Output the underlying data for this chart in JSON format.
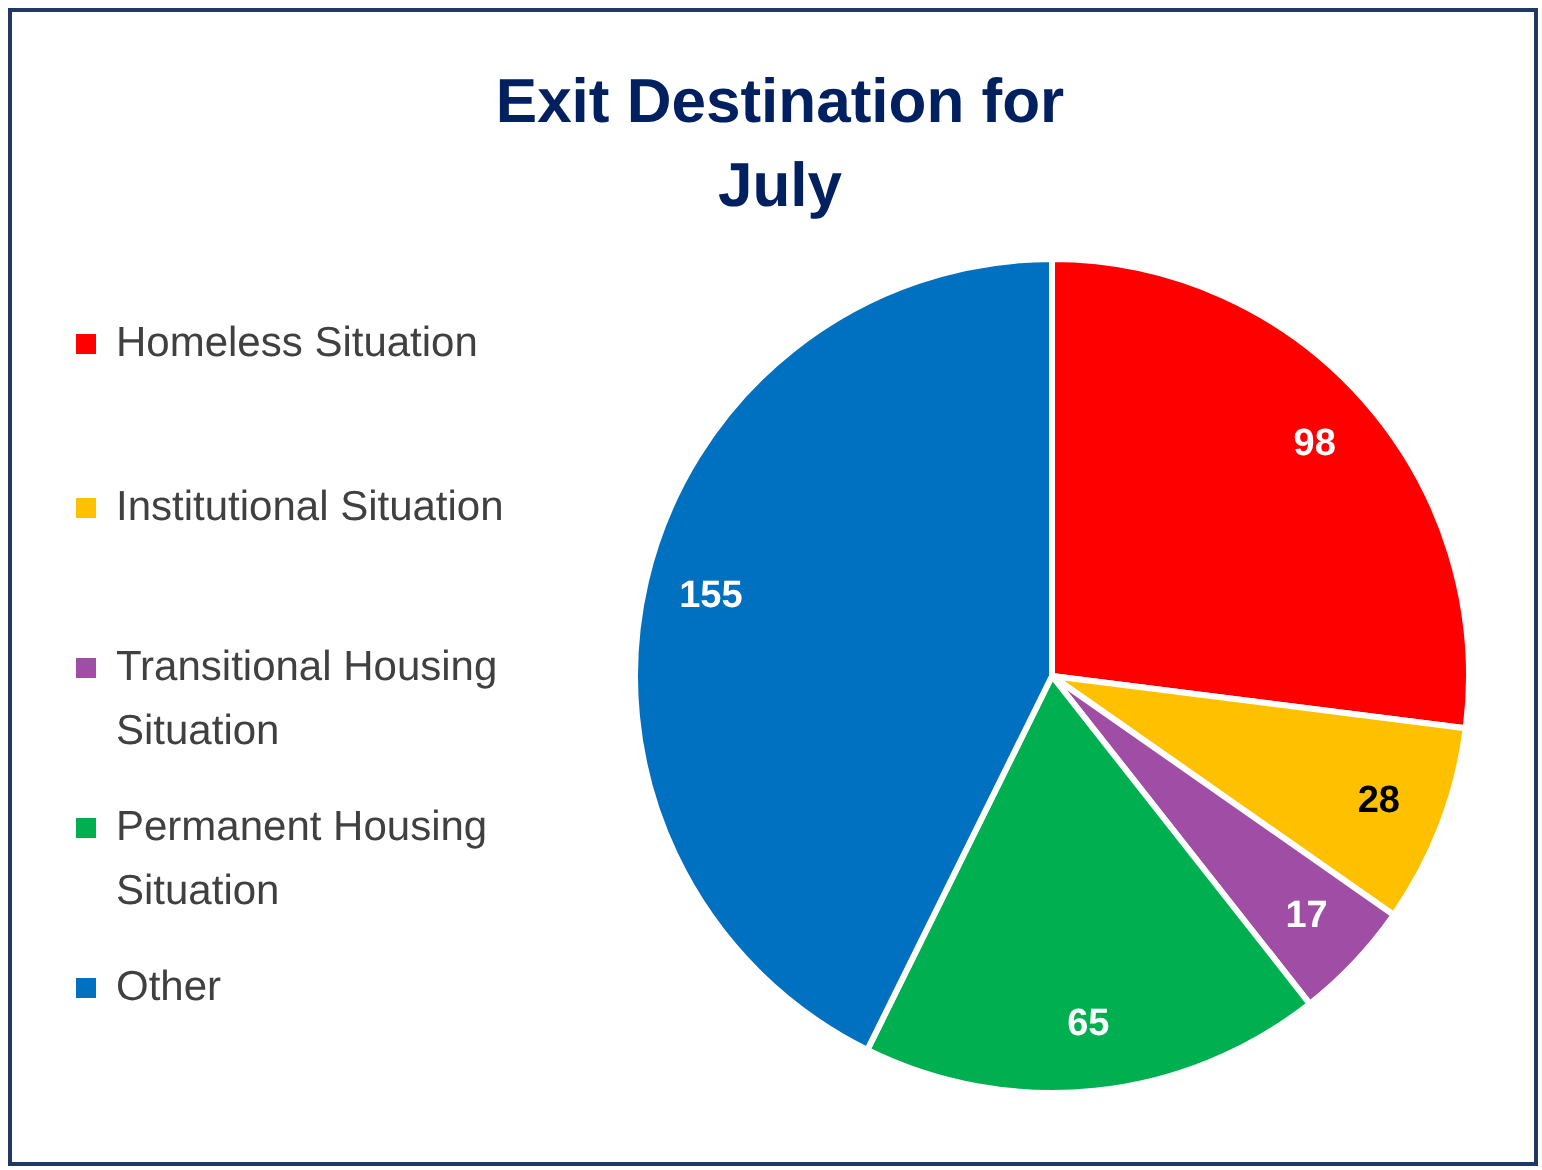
{
  "chart_data": {
    "type": "pie",
    "title": "Exit Destination for July",
    "categories": [
      "Homeless Situation",
      "Institutional Situation",
      "Transitional Housing Situation",
      "Permanent Housing Situation",
      "Other"
    ],
    "values": [
      98,
      28,
      17,
      65,
      155
    ],
    "colors": [
      "#ff0000",
      "#ffc000",
      "#a04ea5",
      "#00b050",
      "#0070c0"
    ],
    "data_labels": true,
    "legend": "left"
  }
}
